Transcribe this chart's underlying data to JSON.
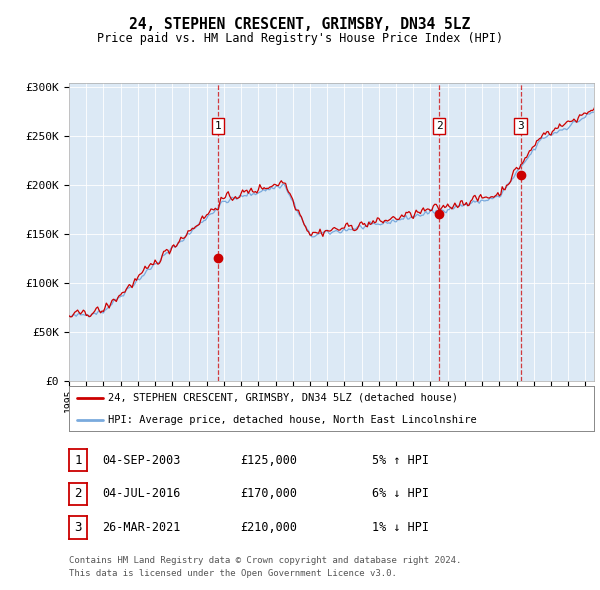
{
  "title": "24, STEPHEN CRESCENT, GRIMSBY, DN34 5LZ",
  "subtitle": "Price paid vs. HM Land Registry's House Price Index (HPI)",
  "plot_bg_color": "#dce9f5",
  "ylabel_ticks": [
    "£0",
    "£50K",
    "£100K",
    "£150K",
    "£200K",
    "£250K",
    "£300K"
  ],
  "ytick_values": [
    0,
    50000,
    100000,
    150000,
    200000,
    250000,
    300000
  ],
  "ylim": [
    0,
    305000
  ],
  "xlim_start": 1995.0,
  "xlim_end": 2025.5,
  "sale_dates": [
    2003.67,
    2016.5,
    2021.23
  ],
  "sale_prices": [
    125000,
    170000,
    210000
  ],
  "sale_labels": [
    "1",
    "2",
    "3"
  ],
  "legend_line1": "24, STEPHEN CRESCENT, GRIMSBY, DN34 5LZ (detached house)",
  "legend_line2": "HPI: Average price, detached house, North East Lincolnshire",
  "table_rows": [
    [
      "1",
      "04-SEP-2003",
      "£125,000",
      "5% ↑ HPI"
    ],
    [
      "2",
      "04-JUL-2016",
      "£170,000",
      "6% ↓ HPI"
    ],
    [
      "3",
      "26-MAR-2021",
      "£210,000",
      "1% ↓ HPI"
    ]
  ],
  "footnote1": "Contains HM Land Registry data © Crown copyright and database right 2024.",
  "footnote2": "This data is licensed under the Open Government Licence v3.0.",
  "red_color": "#cc0000",
  "blue_color": "#7aaadd",
  "hpi_noise_scale": 1800,
  "price_noise_scale": 3000,
  "random_seed": 42
}
